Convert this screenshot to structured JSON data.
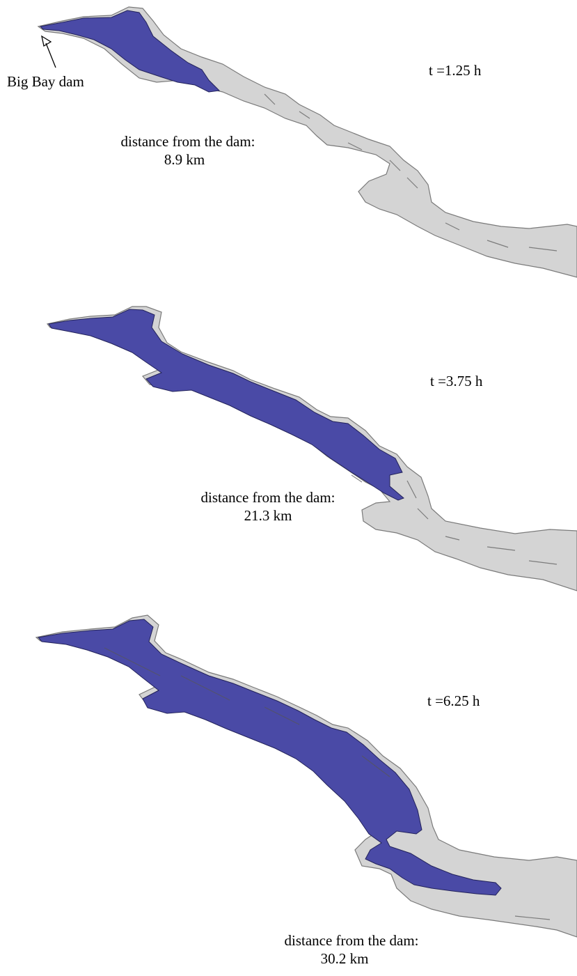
{
  "dam_label": "Big Bay dam",
  "panels": [
    {
      "time": "t =1.25 h",
      "distance_label": "distance from the dam:",
      "distance_value": "8.9 km"
    },
    {
      "time": "t =3.75 h",
      "distance_label": "distance from the dam:",
      "distance_value": "21.3 km"
    },
    {
      "time": "t =6.25 h",
      "distance_label": "distance from the dam:",
      "distance_value": "30.2 km"
    }
  ],
  "colors": {
    "flood": "#4a4aa6",
    "terrain": "#d4d4d4"
  }
}
